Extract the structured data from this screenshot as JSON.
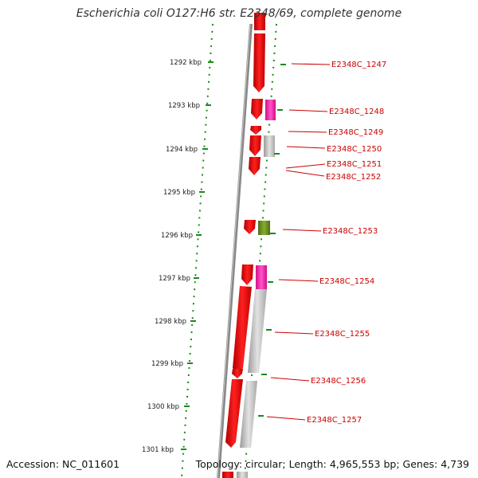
{
  "title": "Escherichia coli O127:H6 str. E2348/69, complete genome",
  "accession": "Accession: NC_011601",
  "summary": "Topology: circular; Length: 4,965,553 bp; Genes: 4,739",
  "kbp_labels": [
    "1292 kbp",
    "1293 kbp",
    "1294 kbp",
    "1295 kbp",
    "1296 kbp",
    "1297 kbp",
    "1298 kbp",
    "1299 kbp",
    "1300 kbp",
    "1301 kbp"
  ],
  "gene_labels": [
    "E2348C_1247",
    "E2348C_1248",
    "E2348C_1249",
    "E2348C_1250",
    "E2348C_1251",
    "E2348C_1252",
    "E2348C_1253",
    "E2348C_1254",
    "E2348C_1255",
    "E2348C_1256",
    "E2348C_1257"
  ],
  "colors": {
    "backbone": "#8c8c8c",
    "cds": "#ff0000",
    "rrna_pink": "#ff33bb",
    "gray_feature": "#bdbdbd",
    "olive_feature": "#6b8e23",
    "scale_dots": "#1a8a1a",
    "label": "#cc0000"
  }
}
